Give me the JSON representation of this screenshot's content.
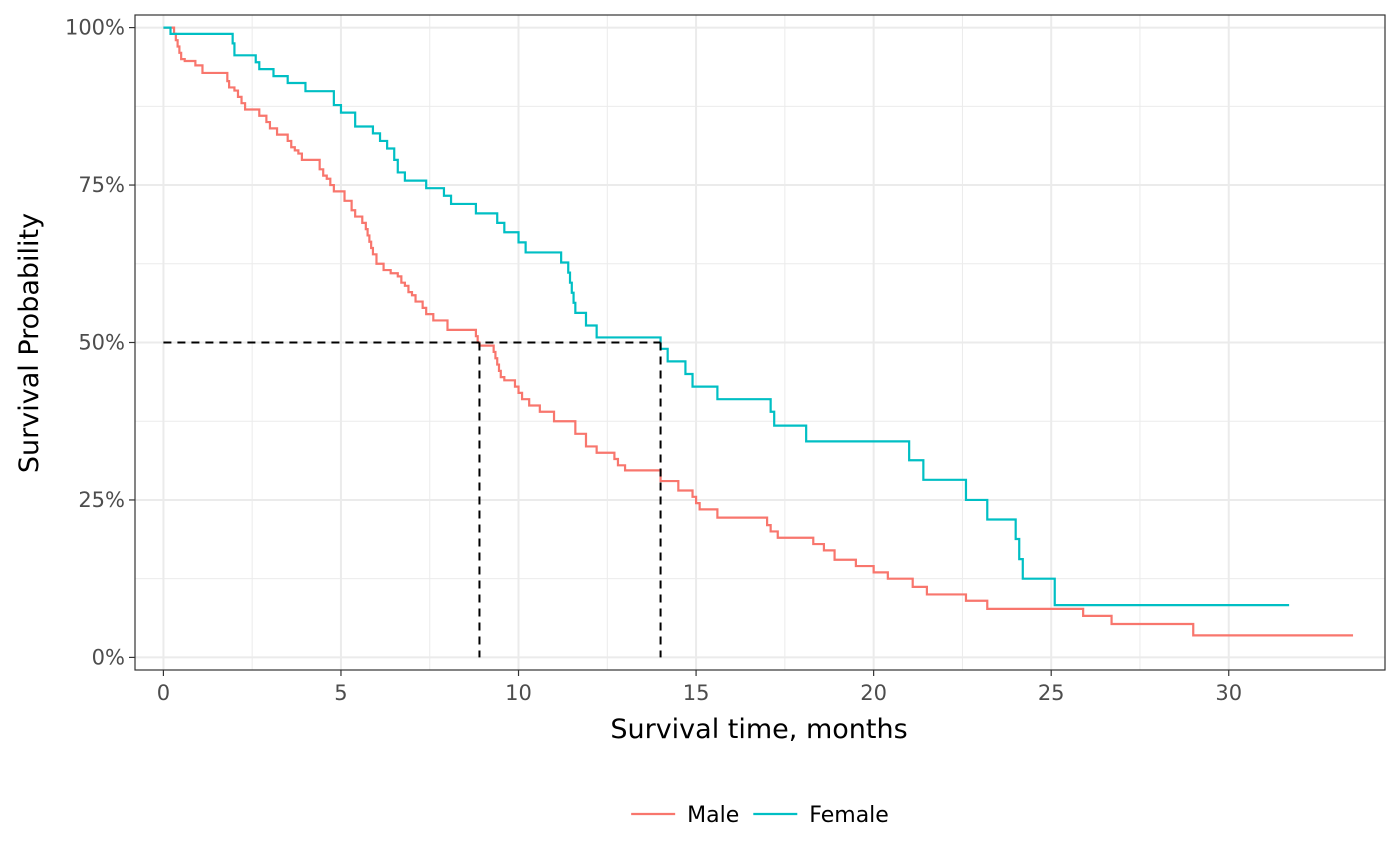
{
  "chart_data": {
    "type": "line",
    "step": true,
    "xlabel": "Survival time, months",
    "ylabel": "Survival Probability",
    "xlim": [
      -0.8,
      34.4
    ],
    "ylim": [
      -0.02,
      1.02
    ],
    "x_ticks": [
      0,
      5,
      10,
      15,
      20,
      25,
      30
    ],
    "x_tick_labels": [
      "0",
      "5",
      "10",
      "15",
      "20",
      "25",
      "30"
    ],
    "y_ticks": [
      0,
      0.25,
      0.5,
      0.75,
      1.0
    ],
    "y_tick_labels": [
      "0%",
      "25%",
      "50%",
      "75%",
      "100%"
    ],
    "grid": true,
    "legend_position": "bottom",
    "series": [
      {
        "name": "Male",
        "color": "#F8766D",
        "x": [
          0,
          0.3,
          0.35,
          0.4,
          0.45,
          0.5,
          0.6,
          0.9,
          1.1,
          1.3,
          1.8,
          1.85,
          2.0,
          2.1,
          2.2,
          2.3,
          2.5,
          2.7,
          2.9,
          3.0,
          3.2,
          3.5,
          3.6,
          3.7,
          3.8,
          3.9,
          4.4,
          4.5,
          4.6,
          4.7,
          4.8,
          5.1,
          5.3,
          5.4,
          5.6,
          5.7,
          5.75,
          5.8,
          5.85,
          5.9,
          6.0,
          6.2,
          6.4,
          6.6,
          6.7,
          6.8,
          6.9,
          7.0,
          7.1,
          7.3,
          7.4,
          7.6,
          8.0,
          8.8,
          8.85,
          8.9,
          9.3,
          9.35,
          9.4,
          9.45,
          9.5,
          9.6,
          9.9,
          10.0,
          10.1,
          10.3,
          10.6,
          11.0,
          11.6,
          11.9,
          12.2,
          12.7,
          12.8,
          13.0,
          14.0,
          14.5,
          14.9,
          15.0,
          15.1,
          15.6,
          17.0,
          17.1,
          17.3,
          17.6,
          18.3,
          18.6,
          18.9,
          19.5,
          20.0,
          20.4,
          21.1,
          21.5,
          22.6,
          23.2,
          25.9,
          26.7,
          29.0,
          33.5
        ],
        "y": [
          1.0,
          0.99,
          0.98,
          0.97,
          0.96,
          0.95,
          0.947,
          0.94,
          0.928,
          0.928,
          0.915,
          0.905,
          0.9,
          0.89,
          0.88,
          0.87,
          0.87,
          0.86,
          0.85,
          0.84,
          0.83,
          0.82,
          0.81,
          0.805,
          0.8,
          0.79,
          0.775,
          0.765,
          0.76,
          0.75,
          0.74,
          0.725,
          0.71,
          0.7,
          0.69,
          0.68,
          0.67,
          0.66,
          0.65,
          0.64,
          0.625,
          0.615,
          0.61,
          0.605,
          0.595,
          0.59,
          0.58,
          0.575,
          0.565,
          0.555,
          0.545,
          0.535,
          0.52,
          0.51,
          0.5,
          0.495,
          0.485,
          0.475,
          0.465,
          0.455,
          0.445,
          0.44,
          0.43,
          0.42,
          0.41,
          0.4,
          0.39,
          0.375,
          0.355,
          0.335,
          0.325,
          0.315,
          0.305,
          0.297,
          0.28,
          0.265,
          0.255,
          0.245,
          0.235,
          0.222,
          0.21,
          0.2,
          0.19,
          0.19,
          0.18,
          0.17,
          0.155,
          0.145,
          0.135,
          0.125,
          0.112,
          0.1,
          0.09,
          0.077,
          0.066,
          0.053,
          0.035,
          0.035
        ]
      },
      {
        "name": "Female",
        "color": "#00BFC4",
        "x": [
          0,
          0.2,
          1.95,
          2.0,
          2.6,
          2.7,
          3.1,
          3.5,
          4.0,
          4.8,
          5.0,
          5.4,
          5.9,
          6.1,
          6.3,
          6.5,
          6.6,
          6.8,
          7.4,
          7.9,
          8.1,
          8.8,
          9.4,
          9.6,
          10.0,
          10.2,
          11.2,
          11.4,
          11.45,
          11.5,
          11.55,
          11.6,
          11.9,
          12.2,
          14.0,
          14.2,
          14.3,
          14.7,
          14.9,
          15.6,
          17.1,
          17.2,
          18.1,
          21.0,
          21.4,
          22.6,
          23.2,
          24.0,
          24.1,
          24.2,
          25.1,
          31.7
        ],
        "y": [
          1.0,
          0.99,
          0.975,
          0.956,
          0.945,
          0.934,
          0.923,
          0.912,
          0.899,
          0.877,
          0.865,
          0.843,
          0.832,
          0.82,
          0.808,
          0.79,
          0.77,
          0.757,
          0.745,
          0.733,
          0.72,
          0.705,
          0.69,
          0.675,
          0.659,
          0.643,
          0.627,
          0.611,
          0.595,
          0.579,
          0.563,
          0.547,
          0.527,
          0.508,
          0.49,
          0.47,
          0.47,
          0.45,
          0.43,
          0.41,
          0.39,
          0.368,
          0.343,
          0.313,
          0.282,
          0.25,
          0.219,
          0.188,
          0.156,
          0.125,
          0.083,
          0.083
        ]
      }
    ],
    "median_lines": [
      {
        "x": 8.9,
        "y": 0.5
      },
      {
        "x": 14.0,
        "y": 0.5
      }
    ],
    "median_line_color": "#000000"
  }
}
